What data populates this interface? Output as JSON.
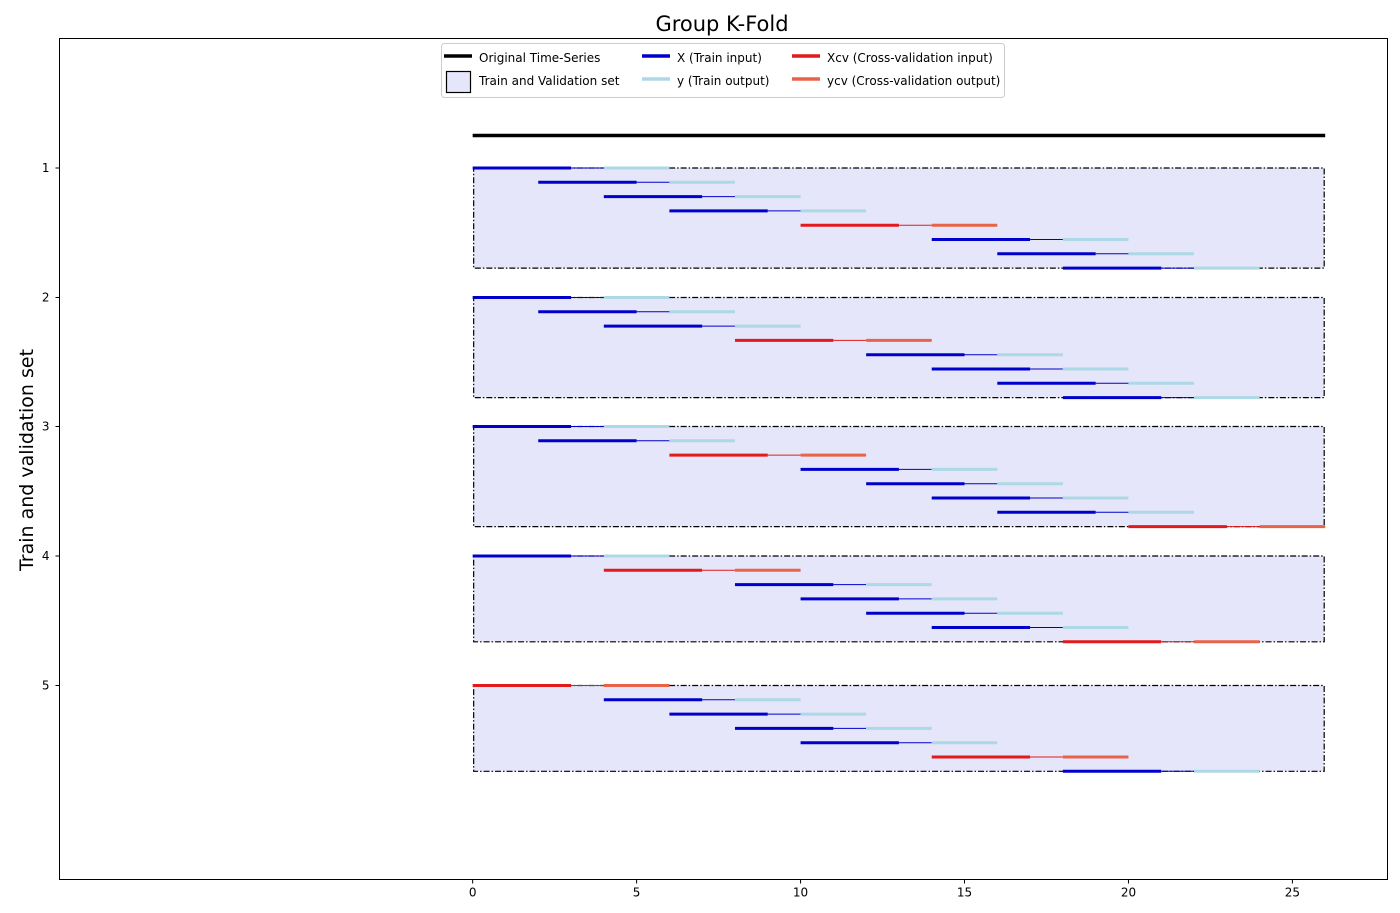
{
  "chart_data": {
    "type": "timeline",
    "title": "Group K-Fold",
    "ylabel": "Train and validation set",
    "xlabel": "",
    "xlim": [
      -12.6,
      27.9
    ],
    "xticks": [
      0,
      5,
      10,
      15,
      20,
      25
    ],
    "yticks": [
      1,
      2,
      3,
      4,
      5
    ],
    "colors": {
      "original": "#000000",
      "train_input": "#0000cd",
      "train_output": "#add8e6",
      "cv_input": "#e31a1c",
      "cv_output": "#e8634a",
      "box_fill": "#e6e6fa",
      "box_edge": "#000000"
    },
    "legend": {
      "placement": "top-center",
      "entries": [
        {
          "key": "original",
          "label": "Original Time-Series",
          "style": "line"
        },
        {
          "key": "train_input",
          "label": "X (Train input)",
          "style": "line"
        },
        {
          "key": "cv_input",
          "label": "Xcv (Cross-validation input)",
          "style": "line"
        },
        {
          "key": "box",
          "label": "Train and Validation set",
          "style": "box"
        },
        {
          "key": "train_output",
          "label": "y (Train output)",
          "style": "line"
        },
        {
          "key": "cv_output",
          "label": "ycv (Cross-validation output)",
          "style": "line"
        }
      ]
    },
    "original_series": {
      "x_start": 0,
      "x_end": 26
    },
    "window": {
      "input_length": 3,
      "gap": 1,
      "output_length": 2
    },
    "folds": [
      {
        "fold": 1,
        "samples": [
          [
            0,
            "train"
          ],
          [
            2,
            "train"
          ],
          [
            4,
            "train"
          ],
          [
            6,
            "train"
          ],
          [
            10,
            "cv"
          ],
          [
            14,
            "train"
          ],
          [
            16,
            "train"
          ],
          [
            18,
            "train"
          ]
        ]
      },
      {
        "fold": 2,
        "samples": [
          [
            0,
            "train"
          ],
          [
            2,
            "train"
          ],
          [
            4,
            "train"
          ],
          [
            8,
            "cv"
          ],
          [
            12,
            "train"
          ],
          [
            14,
            "train"
          ],
          [
            16,
            "train"
          ],
          [
            18,
            "train"
          ]
        ]
      },
      {
        "fold": 3,
        "samples": [
          [
            0,
            "train"
          ],
          [
            2,
            "train"
          ],
          [
            6,
            "cv"
          ],
          [
            10,
            "train"
          ],
          [
            12,
            "train"
          ],
          [
            14,
            "train"
          ],
          [
            16,
            "train"
          ],
          [
            20,
            "cv"
          ]
        ]
      },
      {
        "fold": 4,
        "samples": [
          [
            0,
            "train"
          ],
          [
            4,
            "cv"
          ],
          [
            8,
            "train"
          ],
          [
            10,
            "train"
          ],
          [
            12,
            "train"
          ],
          [
            14,
            "train"
          ],
          [
            18,
            "cv"
          ]
        ]
      },
      {
        "fold": 5,
        "samples": [
          [
            0,
            "cv"
          ],
          [
            4,
            "train"
          ],
          [
            6,
            "train"
          ],
          [
            8,
            "train"
          ],
          [
            10,
            "train"
          ],
          [
            14,
            "cv"
          ],
          [
            18,
            "train"
          ]
        ]
      }
    ]
  }
}
